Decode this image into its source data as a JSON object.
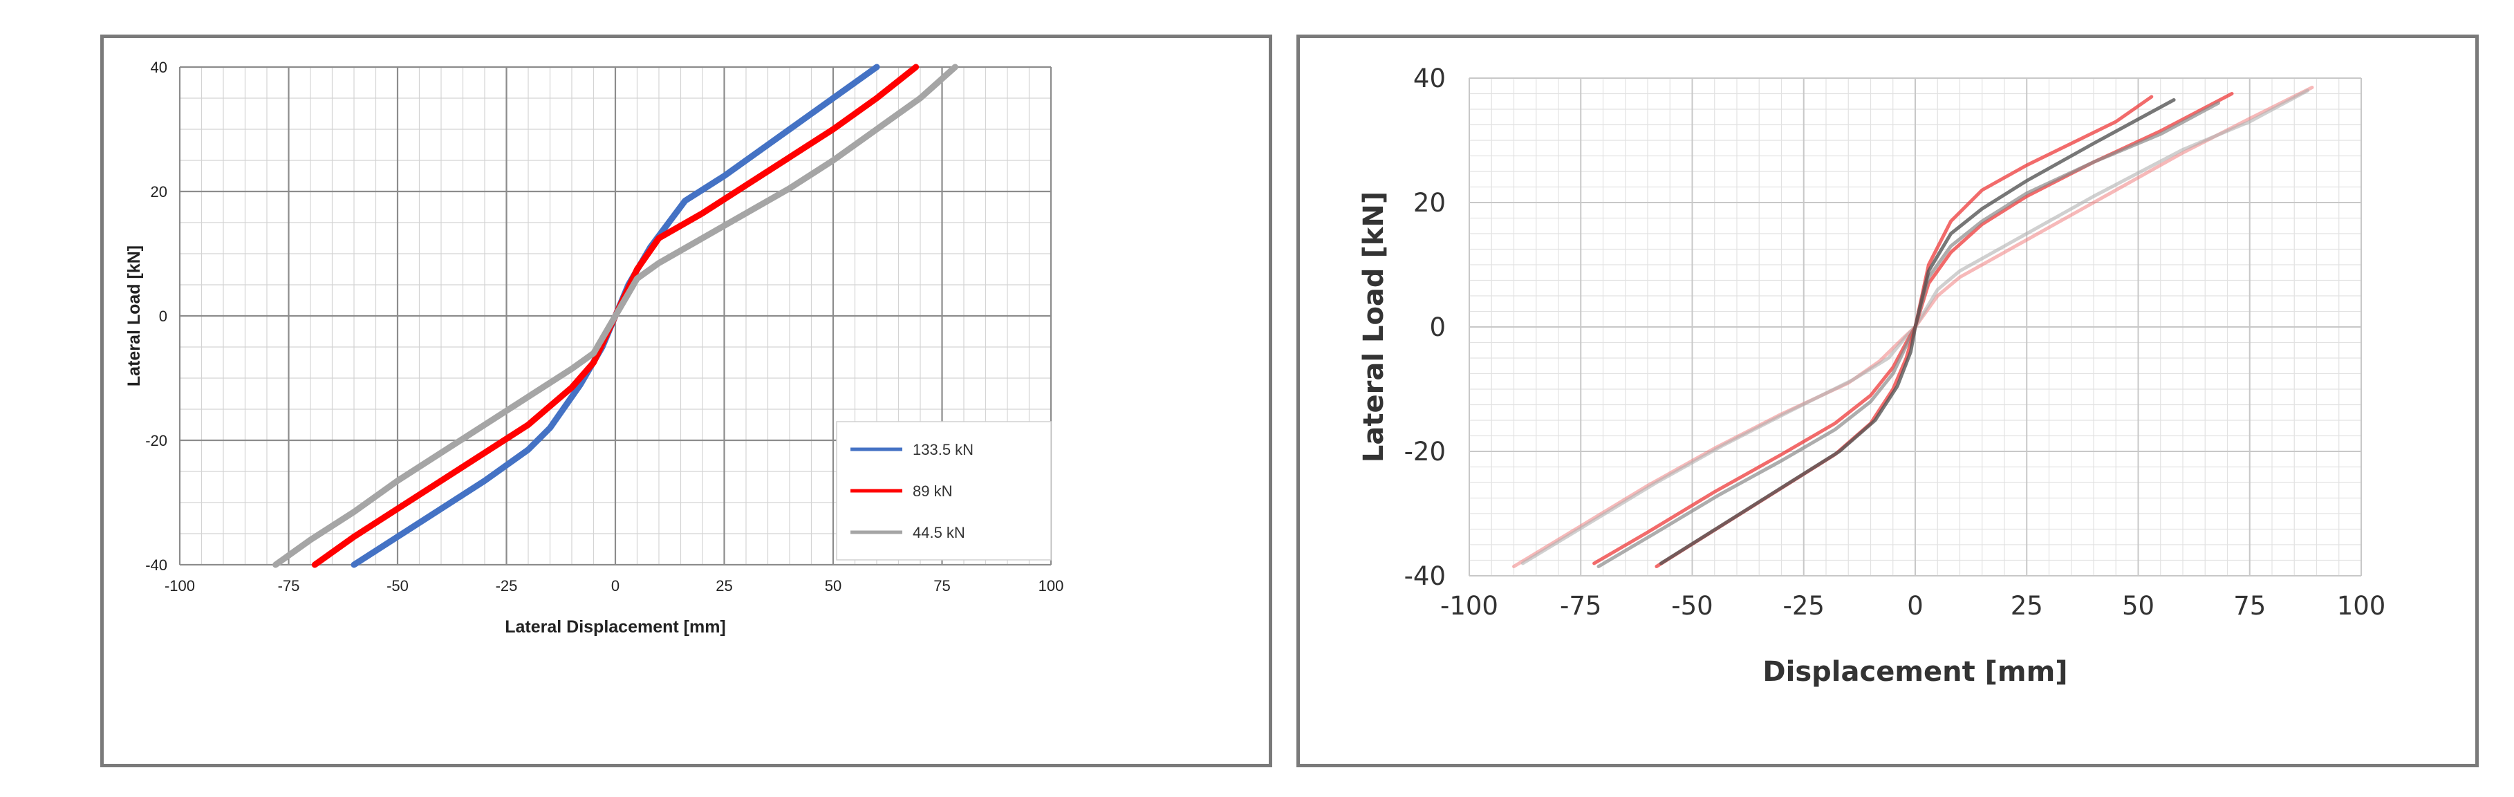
{
  "chart_data": [
    {
      "type": "line",
      "title": "",
      "xlabel": "Lateral Displacement [mm]",
      "ylabel": "Lateral Load [kN]",
      "xlim": [
        -100,
        100
      ],
      "ylim": [
        -40,
        40
      ],
      "xticks": [
        "-100",
        "-75",
        "-50",
        "-25",
        "0",
        "25",
        "50",
        "75",
        "100"
      ],
      "yticks": [
        "40",
        "20",
        "0",
        "-20",
        "-40"
      ],
      "grid": true,
      "legend_position": "bottom-right",
      "series": [
        {
          "name": "133.5 kN",
          "color": "#4472c4",
          "points": [
            [
              -60,
              -40
            ],
            [
              -50,
              -35.5
            ],
            [
              -40,
              -31
            ],
            [
              -30,
              -26.5
            ],
            [
              -20,
              -21.5
            ],
            [
              -15,
              -18
            ],
            [
              -8,
              -11
            ],
            [
              -3,
              -5
            ],
            [
              0,
              0
            ],
            [
              3,
              5
            ],
            [
              8,
              11
            ],
            [
              16,
              18.5
            ],
            [
              25,
              22.5
            ],
            [
              35,
              27.5
            ],
            [
              45,
              32.5
            ],
            [
              55,
              37.5
            ],
            [
              60,
              40
            ]
          ]
        },
        {
          "name": "89 kN",
          "color": "#ff0000",
          "points": [
            [
              -69,
              -40
            ],
            [
              -60,
              -35.5
            ],
            [
              -50,
              -31
            ],
            [
              -40,
              -26.5
            ],
            [
              -30,
              -22
            ],
            [
              -20,
              -17.5
            ],
            [
              -10,
              -11.5
            ],
            [
              -5,
              -7.5
            ],
            [
              0,
              0
            ],
            [
              5,
              7.5
            ],
            [
              10,
              12.5
            ],
            [
              20,
              16.5
            ],
            [
              30,
              21
            ],
            [
              40,
              25.5
            ],
            [
              50,
              30
            ],
            [
              60,
              35
            ],
            [
              69,
              40
            ]
          ]
        },
        {
          "name": "44.5 kN",
          "color": "#a5a5a5",
          "points": [
            [
              -78,
              -40
            ],
            [
              -70,
              -36
            ],
            [
              -60,
              -31.5
            ],
            [
              -50,
              -26.5
            ],
            [
              -40,
              -22
            ],
            [
              -30,
              -17.5
            ],
            [
              -20,
              -13
            ],
            [
              -10,
              -8.5
            ],
            [
              -5,
              -6
            ],
            [
              0,
              0
            ],
            [
              5,
              6
            ],
            [
              10,
              8.5
            ],
            [
              20,
              12.5
            ],
            [
              30,
              16.5
            ],
            [
              40,
              20.5
            ],
            [
              50,
              25
            ],
            [
              60,
              30
            ],
            [
              70,
              35
            ],
            [
              78,
              40
            ]
          ]
        }
      ]
    },
    {
      "type": "line",
      "title": "",
      "xlabel": "Displacement [mm]",
      "ylabel": "Lateral Load [kN]",
      "xlim": [
        -100,
        100
      ],
      "ylim": [
        -40,
        40
      ],
      "xticks": [
        "-100",
        "-75",
        "-50",
        "-25",
        "0",
        "25",
        "50",
        "75",
        "100"
      ],
      "yticks": [
        "40",
        "20",
        "0",
        "-20",
        "-40"
      ],
      "grid": true,
      "series": [
        {
          "color": "#f08080",
          "opacity": 0.55,
          "points": [
            [
              -90,
              -38.5
            ],
            [
              -75,
              -32
            ],
            [
              -60,
              -25.5
            ],
            [
              -45,
              -19.5
            ],
            [
              -30,
              -14
            ],
            [
              -15,
              -9
            ],
            [
              -8,
              -5.5
            ],
            [
              -3,
              -2
            ],
            [
              0,
              0
            ],
            [
              5,
              5
            ],
            [
              10,
              8
            ],
            [
              20,
              12
            ],
            [
              40,
              20
            ],
            [
              60,
              28
            ],
            [
              75,
              33.5
            ],
            [
              89,
              38.5
            ]
          ]
        },
        {
          "color": "#b0b0b0",
          "opacity": 0.6,
          "points": [
            [
              -88,
              -38
            ],
            [
              -73,
              -31.5
            ],
            [
              -58,
              -25
            ],
            [
              -43,
              -19
            ],
            [
              -28,
              -13.5
            ],
            [
              -14,
              -8.5
            ],
            [
              -6,
              -5
            ],
            [
              -2,
              -1.5
            ],
            [
              0,
              0
            ],
            [
              5,
              6
            ],
            [
              10,
              9
            ],
            [
              20,
              13
            ],
            [
              40,
              21
            ],
            [
              60,
              28.5
            ],
            [
              75,
              33
            ],
            [
              88,
              38
            ]
          ]
        },
        {
          "color": "#ee3a3a",
          "opacity": 0.75,
          "points": [
            [
              -72,
              -38
            ],
            [
              -60,
              -33
            ],
            [
              -45,
              -26.5
            ],
            [
              -30,
              -20.5
            ],
            [
              -18,
              -15.5
            ],
            [
              -10,
              -11
            ],
            [
              -5,
              -6.5
            ],
            [
              -2,
              -2.5
            ],
            [
              0,
              0
            ],
            [
              3,
              7
            ],
            [
              8,
              12
            ],
            [
              15,
              16.5
            ],
            [
              25,
              21
            ],
            [
              40,
              26.5
            ],
            [
              55,
              31.5
            ],
            [
              71,
              37.5
            ]
          ]
        },
        {
          "color": "#8a8a8a",
          "opacity": 0.7,
          "points": [
            [
              -71,
              -38.5
            ],
            [
              -58,
              -33
            ],
            [
              -44,
              -27
            ],
            [
              -30,
              -21.5
            ],
            [
              -18,
              -16.5
            ],
            [
              -10,
              -12
            ],
            [
              -5,
              -7.5
            ],
            [
              -2,
              -3
            ],
            [
              0,
              0
            ],
            [
              3,
              8
            ],
            [
              8,
              13
            ],
            [
              15,
              17
            ],
            [
              25,
              21.5
            ],
            [
              40,
              26.5
            ],
            [
              55,
              31
            ],
            [
              68,
              36
            ]
          ]
        },
        {
          "color": "#ee3a3a",
          "opacity": 0.75,
          "points": [
            [
              -58,
              -38.5
            ],
            [
              -48,
              -34
            ],
            [
              -38,
              -29.5
            ],
            [
              -28,
              -25
            ],
            [
              -18,
              -20.5
            ],
            [
              -10,
              -15.5
            ],
            [
              -5,
              -10
            ],
            [
              -2,
              -5
            ],
            [
              0,
              0
            ],
            [
              3,
              10
            ],
            [
              8,
              17
            ],
            [
              15,
              22
            ],
            [
              25,
              26
            ],
            [
              35,
              29.5
            ],
            [
              45,
              33
            ],
            [
              53,
              37
            ]
          ]
        },
        {
          "color": "#555555",
          "opacity": 0.8,
          "points": [
            [
              -57,
              -38
            ],
            [
              -47,
              -33.5
            ],
            [
              -37,
              -29
            ],
            [
              -27,
              -24.5
            ],
            [
              -17,
              -20
            ],
            [
              -9,
              -15
            ],
            [
              -4,
              -9.5
            ],
            [
              -1,
              -4
            ],
            [
              0,
              0
            ],
            [
              3,
              9
            ],
            [
              8,
              15
            ],
            [
              15,
              19
            ],
            [
              25,
              23.5
            ],
            [
              40,
              29.5
            ],
            [
              58,
              36.5
            ]
          ]
        }
      ]
    }
  ]
}
